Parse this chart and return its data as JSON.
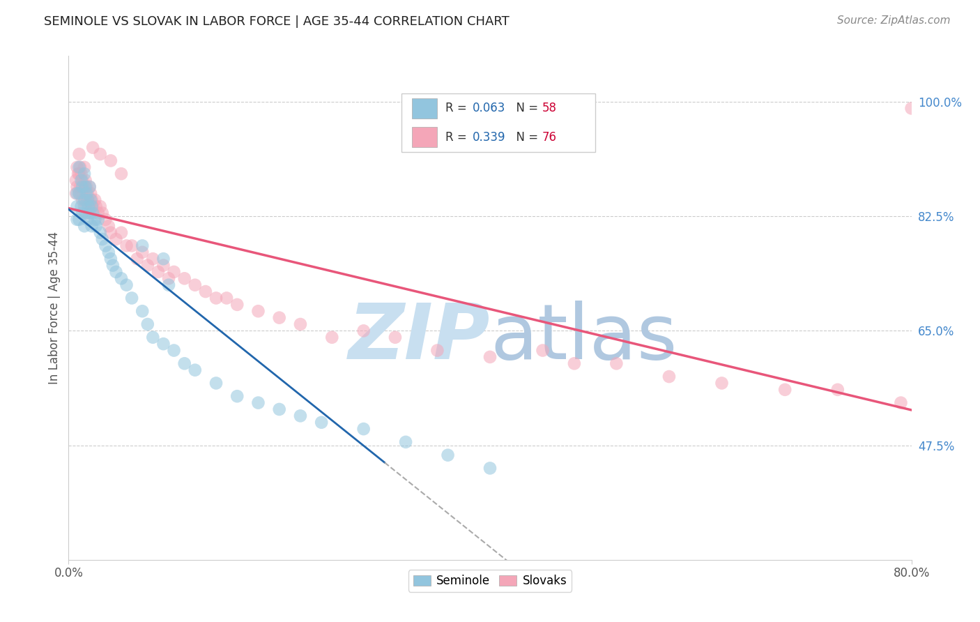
{
  "title": "SEMINOLE VS SLOVAK IN LABOR FORCE | AGE 35-44 CORRELATION CHART",
  "source": "Source: ZipAtlas.com",
  "ylabel": "In Labor Force | Age 35-44",
  "xmin": 0.0,
  "xmax": 0.8,
  "ymin": 0.3,
  "ymax": 1.07,
  "yticks": [
    0.475,
    0.65,
    0.825,
    1.0
  ],
  "ytick_labels": [
    "47.5%",
    "65.0%",
    "82.5%",
    "100.0%"
  ],
  "seminole_color": "#92c5de",
  "slovak_color": "#f4a6b8",
  "seminole_line_color": "#2166ac",
  "slovak_line_color": "#e8567a",
  "dashed_line_color": "#aaaaaa",
  "seminole_R": 0.063,
  "seminole_N": 58,
  "slovak_R": 0.339,
  "slovak_N": 76,
  "R_text_color": "#2166ac",
  "N_text_color": "#cc0033",
  "watermark_zip_color": "#c8dff0",
  "watermark_atlas_color": "#b0c8e0",
  "background_color": "#ffffff",
  "grid_color": "#cccccc",
  "title_color": "#222222",
  "source_color": "#888888",
  "ylabel_color": "#555555",
  "xtick_color": "#555555",
  "seminole_scatter_x": [
    0.008,
    0.008,
    0.008,
    0.01,
    0.01,
    0.01,
    0.012,
    0.012,
    0.013,
    0.013,
    0.015,
    0.015,
    0.015,
    0.016,
    0.016,
    0.017,
    0.018,
    0.018,
    0.019,
    0.02,
    0.02,
    0.021,
    0.022,
    0.022,
    0.023,
    0.025,
    0.026,
    0.028,
    0.03,
    0.032,
    0.035,
    0.038,
    0.04,
    0.042,
    0.045,
    0.05,
    0.055,
    0.06,
    0.07,
    0.075,
    0.08,
    0.09,
    0.1,
    0.11,
    0.12,
    0.14,
    0.16,
    0.18,
    0.2,
    0.22,
    0.24,
    0.28,
    0.32,
    0.36,
    0.4,
    0.09,
    0.07,
    0.095
  ],
  "seminole_scatter_y": [
    0.86,
    0.84,
    0.82,
    0.9,
    0.86,
    0.82,
    0.88,
    0.84,
    0.87,
    0.83,
    0.89,
    0.85,
    0.81,
    0.87,
    0.83,
    0.86,
    0.85,
    0.82,
    0.84,
    0.87,
    0.83,
    0.85,
    0.84,
    0.81,
    0.83,
    0.82,
    0.81,
    0.82,
    0.8,
    0.79,
    0.78,
    0.77,
    0.76,
    0.75,
    0.74,
    0.73,
    0.72,
    0.7,
    0.68,
    0.66,
    0.64,
    0.63,
    0.62,
    0.6,
    0.59,
    0.57,
    0.55,
    0.54,
    0.53,
    0.52,
    0.51,
    0.5,
    0.48,
    0.46,
    0.44,
    0.76,
    0.78,
    0.72
  ],
  "slovak_scatter_x": [
    0.007,
    0.007,
    0.008,
    0.008,
    0.009,
    0.01,
    0.01,
    0.01,
    0.011,
    0.011,
    0.012,
    0.012,
    0.013,
    0.013,
    0.014,
    0.015,
    0.015,
    0.015,
    0.016,
    0.016,
    0.017,
    0.018,
    0.018,
    0.019,
    0.02,
    0.02,
    0.021,
    0.022,
    0.023,
    0.025,
    0.026,
    0.028,
    0.03,
    0.032,
    0.035,
    0.038,
    0.04,
    0.045,
    0.05,
    0.055,
    0.06,
    0.065,
    0.07,
    0.075,
    0.08,
    0.085,
    0.09,
    0.095,
    0.1,
    0.11,
    0.12,
    0.13,
    0.14,
    0.15,
    0.16,
    0.18,
    0.2,
    0.22,
    0.25,
    0.28,
    0.31,
    0.35,
    0.4,
    0.45,
    0.48,
    0.52,
    0.57,
    0.62,
    0.68,
    0.73,
    0.79,
    0.8,
    0.023,
    0.03,
    0.04,
    0.05
  ],
  "slovak_scatter_y": [
    0.88,
    0.86,
    0.9,
    0.87,
    0.89,
    0.92,
    0.89,
    0.86,
    0.9,
    0.87,
    0.89,
    0.86,
    0.88,
    0.85,
    0.87,
    0.9,
    0.87,
    0.84,
    0.88,
    0.85,
    0.87,
    0.86,
    0.83,
    0.85,
    0.87,
    0.84,
    0.86,
    0.85,
    0.84,
    0.85,
    0.84,
    0.83,
    0.84,
    0.83,
    0.82,
    0.81,
    0.8,
    0.79,
    0.8,
    0.78,
    0.78,
    0.76,
    0.77,
    0.75,
    0.76,
    0.74,
    0.75,
    0.73,
    0.74,
    0.73,
    0.72,
    0.71,
    0.7,
    0.7,
    0.69,
    0.68,
    0.67,
    0.66,
    0.64,
    0.65,
    0.64,
    0.62,
    0.61,
    0.62,
    0.6,
    0.6,
    0.58,
    0.57,
    0.56,
    0.56,
    0.54,
    0.99,
    0.93,
    0.92,
    0.91,
    0.89
  ]
}
